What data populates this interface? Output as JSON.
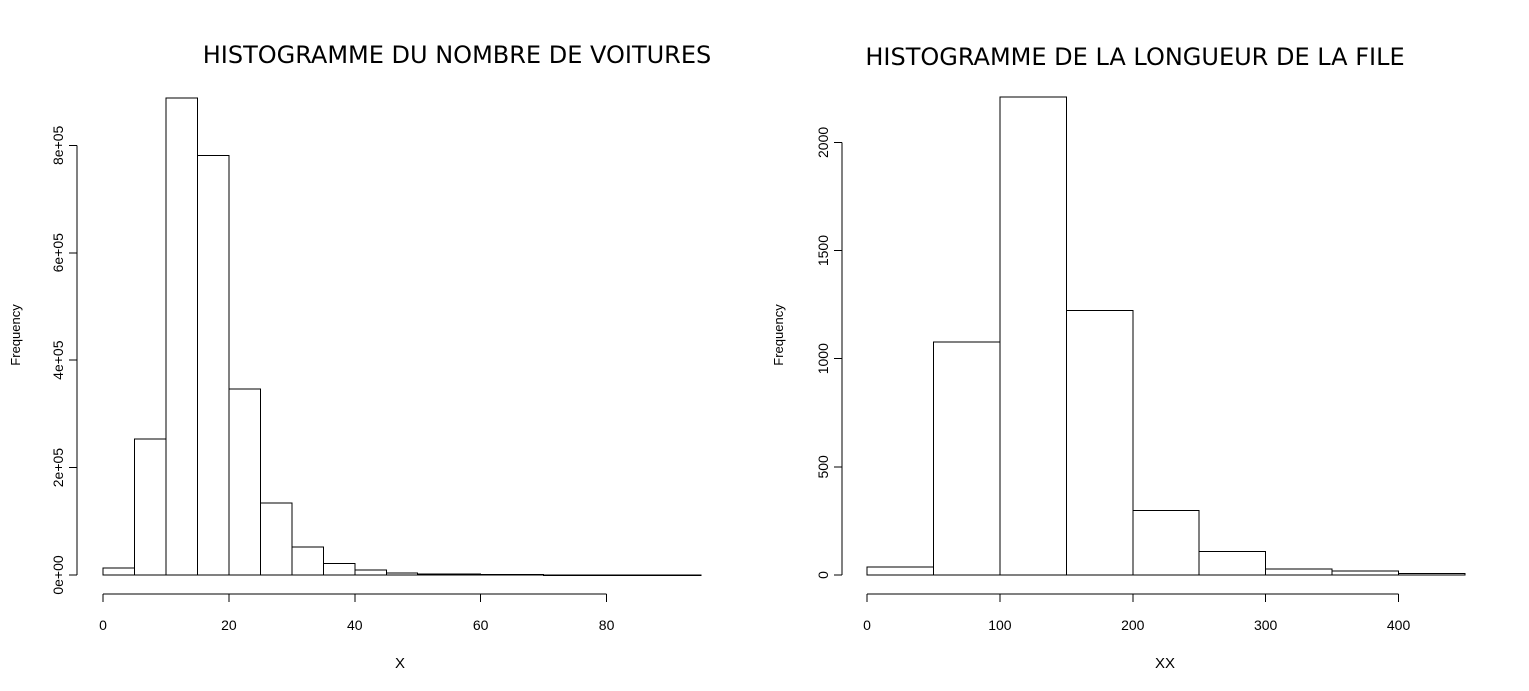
{
  "chart_data": [
    {
      "type": "bar",
      "title": "HISTOGRAMME DU NOMBRE DE VOITURES",
      "xlabel": "X",
      "ylabel": "Frequency",
      "xlim": [
        0,
        95
      ],
      "ylim": [
        0,
        890000
      ],
      "x_ticks": [
        0,
        20,
        40,
        60,
        80
      ],
      "x_tick_labels": [
        "0",
        "20",
        "40",
        "60",
        "80"
      ],
      "y_ticks": [
        0,
        200000,
        400000,
        600000,
        800000
      ],
      "y_tick_labels": [
        "0e+00",
        "2e+05",
        "4e+05",
        "6e+05",
        "8e+05"
      ],
      "bins": [
        {
          "start": 0,
          "end": 5,
          "value": 13000
        },
        {
          "start": 5,
          "end": 10,
          "value": 253000
        },
        {
          "start": 10,
          "end": 15,
          "value": 888000
        },
        {
          "start": 15,
          "end": 20,
          "value": 781000
        },
        {
          "start": 20,
          "end": 25,
          "value": 346000
        },
        {
          "start": 25,
          "end": 30,
          "value": 134000
        },
        {
          "start": 30,
          "end": 35,
          "value": 52000
        },
        {
          "start": 35,
          "end": 40,
          "value": 21000
        },
        {
          "start": 40,
          "end": 45,
          "value": 9000
        },
        {
          "start": 45,
          "end": 50,
          "value": 4000
        },
        {
          "start": 50,
          "end": 55,
          "value": 2000
        },
        {
          "start": 55,
          "end": 60,
          "value": 1500
        },
        {
          "start": 60,
          "end": 65,
          "value": 1000
        },
        {
          "start": 65,
          "end": 70,
          "value": 700
        },
        {
          "start": 70,
          "end": 75,
          "value": 300
        },
        {
          "start": 75,
          "end": 80,
          "value": 200
        },
        {
          "start": 80,
          "end": 85,
          "value": 100
        },
        {
          "start": 85,
          "end": 90,
          "value": 60
        },
        {
          "start": 90,
          "end": 95,
          "value": 30
        }
      ],
      "grid": false
    },
    {
      "type": "bar",
      "title": "HISTOGRAMME DE LA LONGUEUR DE LA FILE",
      "xlabel": "XX",
      "ylabel": "Frequency",
      "xlim": [
        0,
        450
      ],
      "ylim": [
        0,
        2210
      ],
      "x_ticks": [
        0,
        100,
        200,
        300,
        400
      ],
      "x_tick_labels": [
        "0",
        "100",
        "200",
        "300",
        "400"
      ],
      "y_ticks": [
        0,
        500,
        1000,
        1500,
        2000
      ],
      "y_tick_labels": [
        "0",
        "500",
        "1000",
        "1500",
        "2000"
      ],
      "bins": [
        {
          "start": 0,
          "end": 50,
          "value": 38
        },
        {
          "start": 50,
          "end": 100,
          "value": 1078
        },
        {
          "start": 100,
          "end": 150,
          "value": 2210
        },
        {
          "start": 150,
          "end": 200,
          "value": 1222
        },
        {
          "start": 200,
          "end": 250,
          "value": 298
        },
        {
          "start": 250,
          "end": 300,
          "value": 108
        },
        {
          "start": 300,
          "end": 350,
          "value": 28
        },
        {
          "start": 350,
          "end": 400,
          "value": 18
        },
        {
          "start": 400,
          "end": 450,
          "value": 6
        }
      ],
      "grid": false
    }
  ]
}
